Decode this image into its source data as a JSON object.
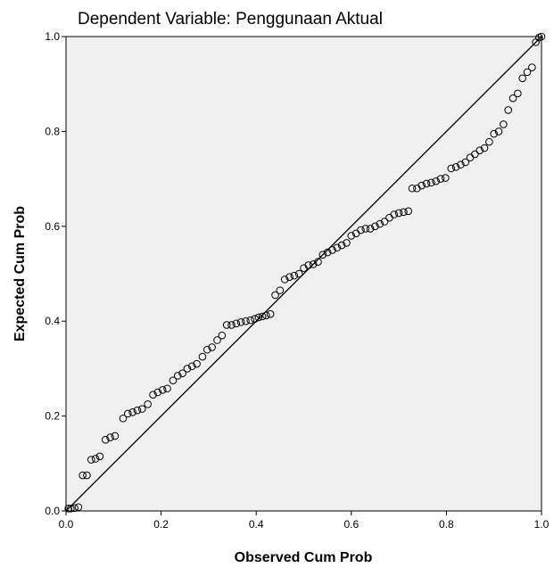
{
  "chart_data": {
    "type": "scatter",
    "title": "Dependent Variable: Penggunaan Aktual",
    "xlabel": "Observed Cum Prob",
    "ylabel": "Expected Cum Prob",
    "xlim": [
      0.0,
      1.0
    ],
    "ylim": [
      0.0,
      1.0
    ],
    "x_ticks": [
      "0.0",
      "0.2",
      "0.4",
      "0.6",
      "0.8",
      "1.0"
    ],
    "y_ticks": [
      "0.0",
      "0.2",
      "0.4",
      "0.6",
      "0.8",
      "1.0"
    ],
    "grid": false,
    "reference_line": [
      [
        0,
        0
      ],
      [
        1,
        1
      ]
    ],
    "colors": {
      "plot_background": "#f0f0f0",
      "marker": "#000000",
      "line": "#000000"
    },
    "points": [
      [
        0.005,
        0.005
      ],
      [
        0.01,
        0.005
      ],
      [
        0.018,
        0.006
      ],
      [
        0.026,
        0.008
      ],
      [
        0.035,
        0.075
      ],
      [
        0.044,
        0.075
      ],
      [
        0.053,
        0.108
      ],
      [
        0.062,
        0.11
      ],
      [
        0.071,
        0.115
      ],
      [
        0.083,
        0.15
      ],
      [
        0.093,
        0.155
      ],
      [
        0.103,
        0.158
      ],
      [
        0.12,
        0.195
      ],
      [
        0.13,
        0.205
      ],
      [
        0.14,
        0.208
      ],
      [
        0.15,
        0.212
      ],
      [
        0.16,
        0.215
      ],
      [
        0.172,
        0.225
      ],
      [
        0.183,
        0.245
      ],
      [
        0.193,
        0.25
      ],
      [
        0.203,
        0.255
      ],
      [
        0.213,
        0.258
      ],
      [
        0.225,
        0.275
      ],
      [
        0.235,
        0.285
      ],
      [
        0.245,
        0.29
      ],
      [
        0.255,
        0.3
      ],
      [
        0.265,
        0.305
      ],
      [
        0.275,
        0.31
      ],
      [
        0.287,
        0.325
      ],
      [
        0.297,
        0.34
      ],
      [
        0.307,
        0.345
      ],
      [
        0.318,
        0.36
      ],
      [
        0.328,
        0.37
      ],
      [
        0.338,
        0.392
      ],
      [
        0.348,
        0.392
      ],
      [
        0.358,
        0.395
      ],
      [
        0.368,
        0.398
      ],
      [
        0.378,
        0.4
      ],
      [
        0.388,
        0.402
      ],
      [
        0.397,
        0.405
      ],
      [
        0.405,
        0.408
      ],
      [
        0.413,
        0.41
      ],
      [
        0.421,
        0.412
      ],
      [
        0.43,
        0.415
      ],
      [
        0.44,
        0.455
      ],
      [
        0.45,
        0.465
      ],
      [
        0.46,
        0.488
      ],
      [
        0.47,
        0.493
      ],
      [
        0.48,
        0.496
      ],
      [
        0.49,
        0.5
      ],
      [
        0.5,
        0.512
      ],
      [
        0.51,
        0.518
      ],
      [
        0.52,
        0.52
      ],
      [
        0.53,
        0.525
      ],
      [
        0.54,
        0.54
      ],
      [
        0.55,
        0.545
      ],
      [
        0.56,
        0.55
      ],
      [
        0.57,
        0.555
      ],
      [
        0.58,
        0.56
      ],
      [
        0.59,
        0.565
      ],
      [
        0.6,
        0.58
      ],
      [
        0.61,
        0.585
      ],
      [
        0.62,
        0.592
      ],
      [
        0.63,
        0.595
      ],
      [
        0.64,
        0.595
      ],
      [
        0.65,
        0.6
      ],
      [
        0.66,
        0.605
      ],
      [
        0.67,
        0.61
      ],
      [
        0.68,
        0.618
      ],
      [
        0.69,
        0.625
      ],
      [
        0.7,
        0.628
      ],
      [
        0.71,
        0.63
      ],
      [
        0.72,
        0.632
      ],
      [
        0.728,
        0.68
      ],
      [
        0.738,
        0.68
      ],
      [
        0.748,
        0.686
      ],
      [
        0.758,
        0.69
      ],
      [
        0.768,
        0.692
      ],
      [
        0.778,
        0.695
      ],
      [
        0.788,
        0.7
      ],
      [
        0.798,
        0.702
      ],
      [
        0.81,
        0.722
      ],
      [
        0.82,
        0.725
      ],
      [
        0.83,
        0.73
      ],
      [
        0.84,
        0.735
      ],
      [
        0.85,
        0.745
      ],
      [
        0.86,
        0.752
      ],
      [
        0.87,
        0.76
      ],
      [
        0.88,
        0.765
      ],
      [
        0.89,
        0.778
      ],
      [
        0.9,
        0.795
      ],
      [
        0.91,
        0.8
      ],
      [
        0.92,
        0.815
      ],
      [
        0.93,
        0.845
      ],
      [
        0.94,
        0.87
      ],
      [
        0.95,
        0.88
      ],
      [
        0.96,
        0.912
      ],
      [
        0.97,
        0.925
      ],
      [
        0.98,
        0.935
      ],
      [
        0.988,
        0.988
      ],
      [
        0.995,
        0.998
      ],
      [
        1.0,
        1.0
      ]
    ]
  }
}
